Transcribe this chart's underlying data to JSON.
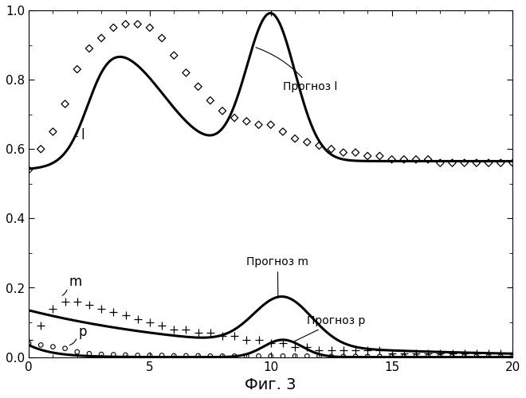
{
  "xlim": [
    0,
    20
  ],
  "ylim": [
    0,
    1
  ],
  "xticks": [
    0,
    5,
    10,
    15,
    20
  ],
  "yticks": [
    0,
    0.2,
    0.4,
    0.6,
    0.8,
    1.0
  ],
  "xlabel": "Фиг. 3",
  "label_l": "l",
  "label_m": "m",
  "label_p": "p",
  "ann_prognoz_l": "Прогноз l",
  "ann_prognoz_m": "Прогноз m",
  "ann_prognoz_p": "Прогноз p",
  "l_scatter_x": [
    0,
    0.5,
    1,
    1.5,
    2,
    2.5,
    3,
    3.5,
    4,
    4.5,
    5,
    5.5,
    6,
    6.5,
    7,
    7.5,
    8,
    8.5,
    9,
    9.5,
    10,
    10.5,
    11,
    11.5,
    12,
    12.5,
    13,
    13.5,
    14,
    14.5,
    15,
    15.5,
    16,
    16.5,
    17,
    17.5,
    18,
    18.5,
    19,
    19.5,
    20
  ],
  "l_scatter_y": [
    0.54,
    0.6,
    0.65,
    0.73,
    0.83,
    0.89,
    0.92,
    0.95,
    0.96,
    0.96,
    0.95,
    0.92,
    0.87,
    0.82,
    0.78,
    0.74,
    0.71,
    0.69,
    0.68,
    0.67,
    0.67,
    0.65,
    0.63,
    0.62,
    0.61,
    0.6,
    0.59,
    0.59,
    0.58,
    0.58,
    0.57,
    0.57,
    0.57,
    0.57,
    0.56,
    0.56,
    0.56,
    0.56,
    0.56,
    0.56,
    0.56
  ],
  "m_scatter_x": [
    0,
    0.5,
    1,
    1.5,
    2,
    2.5,
    3,
    3.5,
    4,
    4.5,
    5,
    5.5,
    6,
    6.5,
    7,
    7.5,
    8,
    8.5,
    9,
    9.5,
    10,
    10.5,
    11,
    11.5,
    12,
    12.5,
    13,
    13.5,
    14,
    14.5,
    15,
    15.5,
    16,
    16.5,
    17,
    17.5,
    18,
    18.5,
    19,
    19.5,
    20
  ],
  "m_scatter_y": [
    0.05,
    0.09,
    0.14,
    0.16,
    0.16,
    0.15,
    0.14,
    0.13,
    0.12,
    0.11,
    0.1,
    0.09,
    0.08,
    0.08,
    0.07,
    0.07,
    0.06,
    0.06,
    0.05,
    0.05,
    0.04,
    0.04,
    0.03,
    0.03,
    0.02,
    0.02,
    0.02,
    0.02,
    0.02,
    0.02,
    0.01,
    0.01,
    0.01,
    0.01,
    0.01,
    0.01,
    0.01,
    0.01,
    0.01,
    0.01,
    0.01
  ],
  "p_scatter_x": [
    0,
    0.5,
    1,
    1.5,
    2,
    2.5,
    3,
    3.5,
    4,
    4.5,
    5,
    5.5,
    6,
    6.5,
    7,
    7.5,
    8,
    8.5,
    9,
    9.5,
    10,
    10.5,
    11,
    11.5,
    12,
    12.5,
    13,
    13.5,
    14,
    14.5,
    15,
    15.5,
    16,
    16.5,
    17,
    17.5,
    18,
    18.5,
    19,
    19.5,
    20
  ],
  "p_scatter_y": [
    0.04,
    0.035,
    0.03,
    0.025,
    0.015,
    0.01,
    0.008,
    0.007,
    0.006,
    0.005,
    0.005,
    0.005,
    0.004,
    0.004,
    0.004,
    0.003,
    0.003,
    0.003,
    0.003,
    0.003,
    0.003,
    0.003,
    0.003,
    0.003,
    0.003,
    0.002,
    0.002,
    0.002,
    0.002,
    0.002,
    0.002,
    0.002,
    0.002,
    0.002,
    0.002,
    0.002,
    0.002,
    0.002,
    0.002,
    0.002,
    0.002
  ]
}
